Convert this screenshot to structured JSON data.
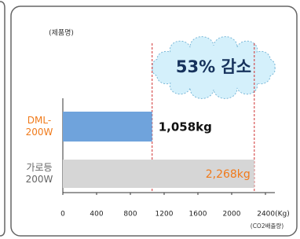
{
  "chart_data": {
    "type": "hbar",
    "annotation": "53% 감소",
    "y_label": "(제품명)",
    "x_label": "(CO2배출량)",
    "categories": [
      "DML-200W",
      "가로등 200W"
    ],
    "values": [
      1058,
      2268
    ],
    "value_labels": [
      "1,058kg",
      "2,268kg"
    ],
    "colors": [
      "#6fa3dc",
      "#d6d6d6"
    ],
    "category_colors": [
      "#f07a1a",
      "#666666"
    ],
    "value_label_colors": [
      "#111111",
      "#f07a1a"
    ],
    "xlim": [
      0,
      2400
    ],
    "xticks": [
      0,
      400,
      800,
      1200,
      1600,
      2000,
      {
        "value": 2400,
        "label": "2400(Kg)"
      }
    ]
  }
}
